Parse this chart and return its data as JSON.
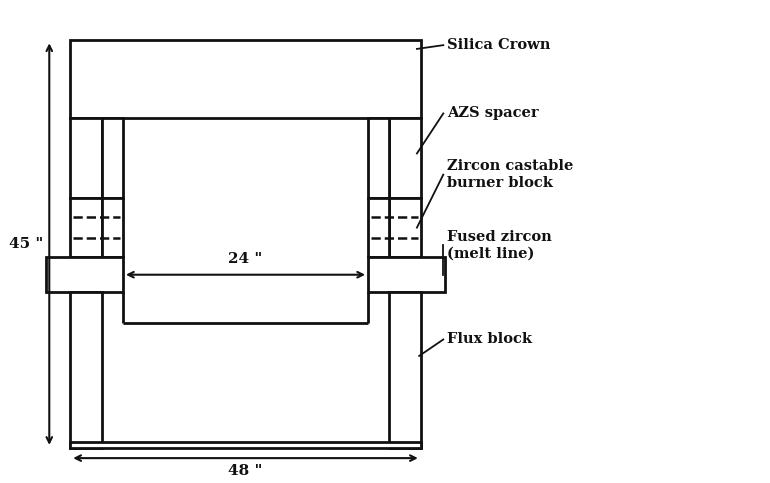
{
  "bg_color": "#ffffff",
  "line_color": "#111111",
  "lw": 2.0,
  "lw_thin": 1.5,
  "labels": {
    "silica_crown": "Silica Crown",
    "azs_spacer": "AZS spacer",
    "zircon_castable": "Zircon castable\nburner block",
    "fused_zircon": "Fused zircon\n(melt line)",
    "flux_block": "Flux block",
    "dim_45": "45 \"",
    "dim_24": "24 \"",
    "dim_48": "48 \""
  },
  "font_size_labels": 10.5,
  "font_size_dims": 11
}
